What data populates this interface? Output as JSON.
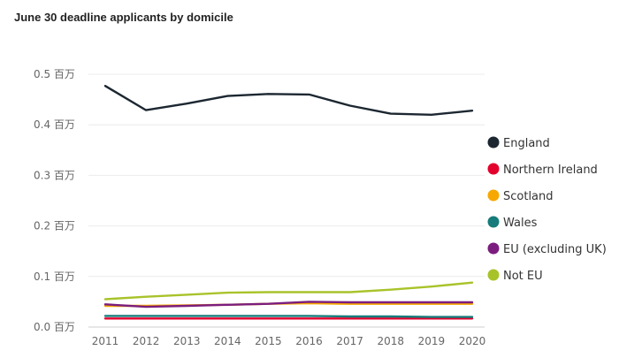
{
  "chart_data": {
    "type": "line",
    "title": "June 30 deadline applicants by domicile",
    "xlabel": "",
    "ylabel": "",
    "x": [
      2011,
      2012,
      2013,
      2014,
      2015,
      2016,
      2017,
      2018,
      2019,
      2020
    ],
    "ylim": [
      0,
      0.5
    ],
    "y_ticks": [
      0,
      0.1,
      0.2,
      0.3,
      0.4,
      0.5
    ],
    "y_tick_labels": [
      "0.0 百万",
      "0.1 百万",
      "0.2 百万",
      "0.3 百万",
      "0.4 百万",
      "0.5 百万"
    ],
    "grid": true,
    "legend_position": "right",
    "series": [
      {
        "name": "England",
        "color": "#1c2731",
        "values": [
          0.477,
          0.429,
          0.442,
          0.457,
          0.461,
          0.46,
          0.438,
          0.422,
          0.42,
          0.428
        ]
      },
      {
        "name": "Northern Ireland",
        "color": "#e3002c",
        "values": [
          0.017,
          0.017,
          0.017,
          0.017,
          0.017,
          0.017,
          0.017,
          0.017,
          0.017,
          0.017
        ]
      },
      {
        "name": "Scotland",
        "color": "#f6a800",
        "values": [
          0.042,
          0.042,
          0.043,
          0.044,
          0.046,
          0.047,
          0.046,
          0.046,
          0.046,
          0.046
        ]
      },
      {
        "name": "Wales",
        "color": "#177b7b",
        "values": [
          0.022,
          0.022,
          0.022,
          0.022,
          0.022,
          0.022,
          0.021,
          0.021,
          0.02,
          0.02
        ]
      },
      {
        "name": "EU (excluding UK)",
        "color": "#7b1d7e",
        "values": [
          0.045,
          0.04,
          0.042,
          0.044,
          0.046,
          0.05,
          0.049,
          0.049,
          0.049,
          0.049
        ]
      },
      {
        "name": "Not EU",
        "color": "#a8c32a",
        "values": [
          0.055,
          0.06,
          0.064,
          0.068,
          0.069,
          0.069,
          0.069,
          0.074,
          0.08,
          0.088
        ]
      }
    ]
  }
}
